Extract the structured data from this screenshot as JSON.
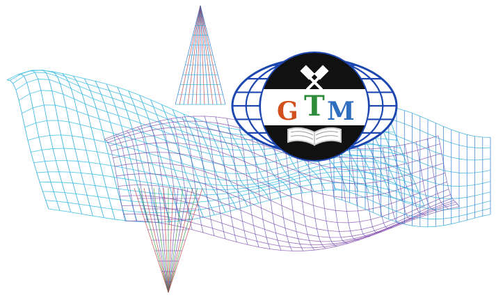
{
  "logo": {
    "letters": [
      "G",
      "T",
      "M"
    ],
    "letter_colors": {
      "G": "#d2501e",
      "T": "#2e8b3a",
      "M": "#2f6fc0"
    },
    "globe_color": "#1c46b0",
    "disc_top_color": "#111111",
    "band_color": "#ffffff",
    "emblem_top": "crossed-hammers-icon",
    "emblem_bottom": "open-book-icon"
  },
  "graphic": {
    "surface_colors": [
      "#23a8d8",
      "#3cc0e6",
      "#5a4bb0",
      "#7a3fa6",
      "#1c6fd0"
    ],
    "spike_color": "#c23b3b",
    "spike_accent": "#2a9a3a"
  }
}
